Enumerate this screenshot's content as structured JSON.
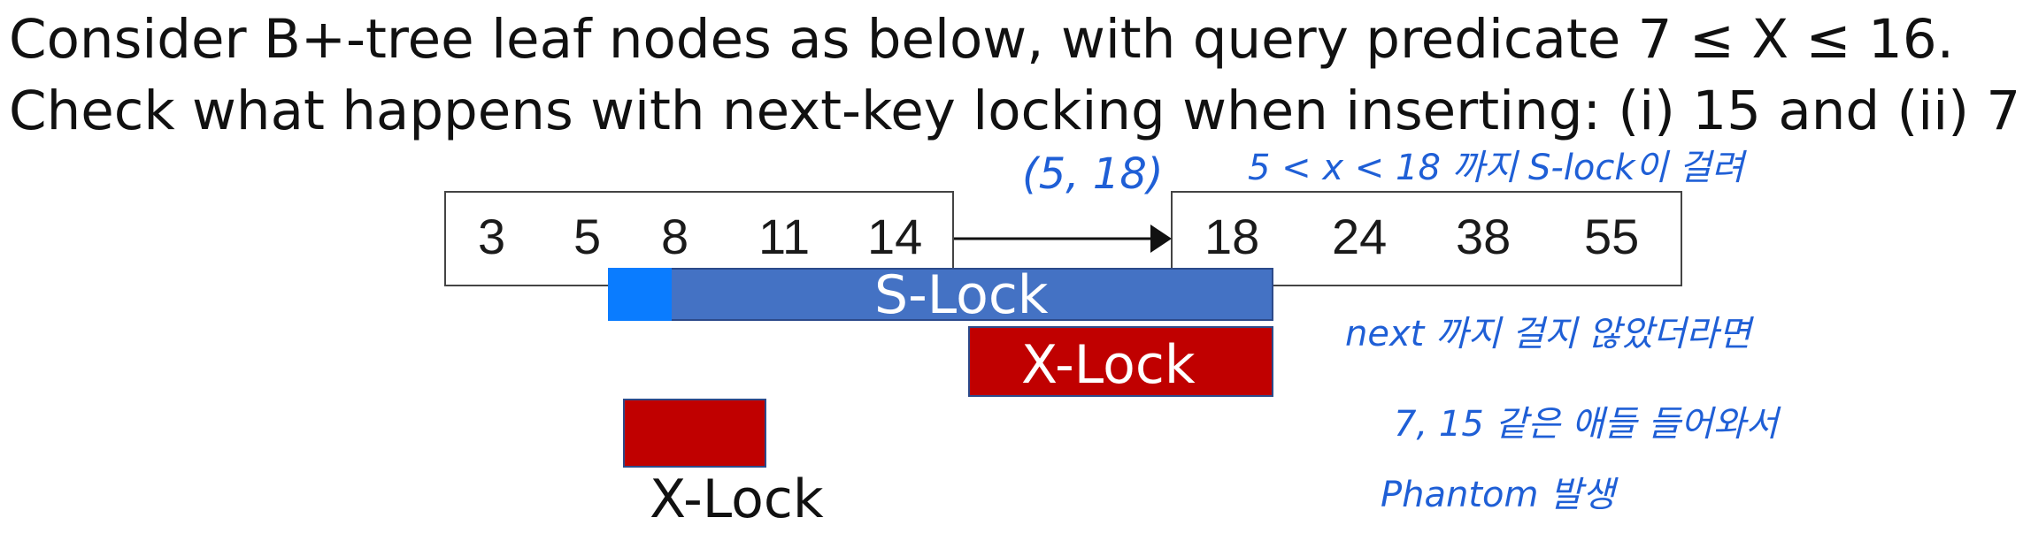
{
  "question": {
    "line1": "Consider B+-tree leaf nodes as below, with query predicate 7 ≤ X ≤ 16.",
    "line2": "Check what happens with next-key locking when inserting: (i) 15 and (ii) 7"
  },
  "leaf_nodes": [
    {
      "keys": [
        "3",
        "5",
        "8",
        "11",
        "14"
      ]
    },
    {
      "keys": [
        "18",
        "24",
        "38",
        "55"
      ]
    }
  ],
  "locks": {
    "s_lock": "S-Lock",
    "x_lock_right": "X-Lock",
    "x_lock_left": "X-Lock"
  },
  "handwritten_notes": {
    "range": "(5, 18)",
    "lock_range": "5 < x < 18 까지 S-lock이 걸려",
    "next": "next 까지 걸지 않았더라면",
    "insert": "7, 15 같은 애들 들어와서",
    "phantom": "Phantom 발생"
  },
  "colors": {
    "s_lock": "#4472c4",
    "s_lock_head": "#0a7cff",
    "x_lock": "#c00000",
    "annotation": "#1f5fd6"
  }
}
